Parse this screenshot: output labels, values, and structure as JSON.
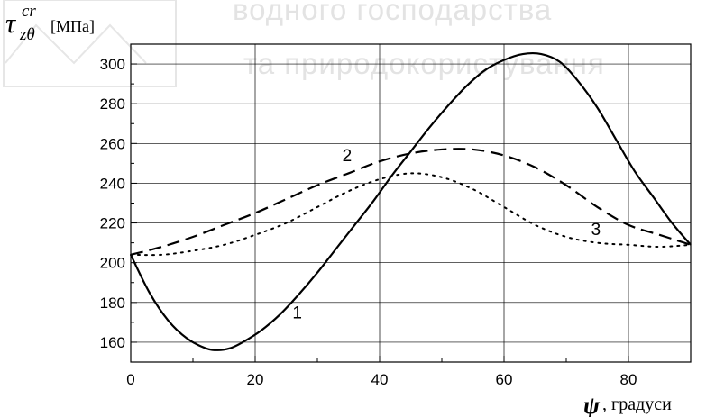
{
  "watermark": {
    "line1": "водного господарства",
    "line2": "та природокористування"
  },
  "chart_data": {
    "type": "line",
    "title": "",
    "ylabel": {
      "symbol": "τ",
      "superscript": "cr",
      "subscript": "zθ",
      "unit": "[МПа]"
    },
    "xlabel": {
      "symbol": "ψ",
      "unit": ", градуси"
    },
    "xlim": [
      0,
      90
    ],
    "ylim": [
      150,
      310
    ],
    "x_ticks": [
      0,
      20,
      40,
      60,
      80
    ],
    "y_ticks": [
      160,
      180,
      200,
      220,
      240,
      260,
      280,
      300
    ],
    "grid": true,
    "series": [
      {
        "name": "1",
        "style": "solid",
        "x": [
          0,
          3,
          6,
          9,
          12,
          14,
          16,
          18,
          21,
          24,
          27,
          30,
          33,
          36,
          39,
          42,
          45,
          48,
          51,
          54,
          57,
          60,
          63,
          66,
          69,
          72,
          75,
          78,
          81,
          84,
          87,
          90
        ],
        "y": [
          204,
          185,
          171,
          162,
          157,
          156,
          157,
          160,
          166,
          174,
          184,
          195,
          207,
          219,
          231,
          244,
          256,
          268,
          279,
          289,
          297,
          302,
          305,
          305,
          301,
          291,
          278,
          262,
          246,
          233,
          220,
          209
        ]
      },
      {
        "name": "2",
        "style": "dashed",
        "x": [
          0,
          5,
          10,
          15,
          20,
          25,
          30,
          35,
          40,
          45,
          50,
          55,
          60,
          65,
          70,
          75,
          80,
          85,
          90
        ],
        "y": [
          204,
          208,
          213,
          219,
          225,
          232,
          239,
          245,
          251,
          255,
          257,
          257,
          254,
          248,
          239,
          228,
          219,
          214,
          209
        ]
      },
      {
        "name": "3",
        "style": "dotted",
        "x": [
          0,
          5,
          10,
          15,
          20,
          25,
          30,
          35,
          40,
          45,
          50,
          55,
          60,
          65,
          70,
          75,
          80,
          85,
          90
        ],
        "y": [
          204,
          204,
          206,
          209,
          214,
          220,
          228,
          236,
          242,
          245,
          243,
          237,
          228,
          219,
          213,
          210,
          209,
          208,
          209
        ]
      }
    ]
  }
}
